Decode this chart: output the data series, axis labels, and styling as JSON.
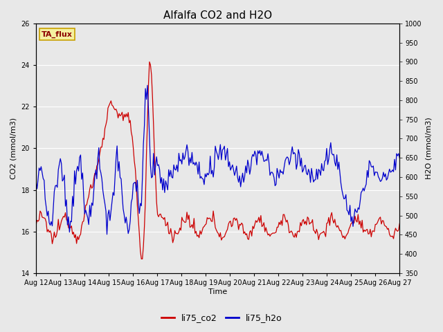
{
  "title": "Alfalfa CO2 and H2O",
  "xlabel": "Time",
  "ylabel_left": "CO2 (mmol/m3)",
  "ylabel_right": "H2O (mmol/m3)",
  "ylim_left": [
    14,
    26
  ],
  "ylim_right": [
    350,
    1000
  ],
  "yticks_left": [
    14,
    16,
    18,
    20,
    22,
    24,
    26
  ],
  "yticks_right": [
    350,
    400,
    450,
    500,
    550,
    600,
    650,
    700,
    750,
    800,
    850,
    900,
    950,
    1000
  ],
  "xtick_labels": [
    "Aug 12",
    "Aug 13",
    "Aug 14",
    "Aug 15",
    "Aug 16",
    "Aug 17",
    "Aug 18",
    "Aug 19",
    "Aug 20",
    "Aug 21",
    "Aug 22",
    "Aug 23",
    "Aug 24",
    "Aug 25",
    "Aug 26",
    "Aug 27"
  ],
  "legend_labels": [
    "li75_co2",
    "li75_h2o"
  ],
  "co2_color": "#cc0000",
  "h2o_color": "#0000cc",
  "bg_color": "#e8e8e8",
  "grid_color": "#ffffff",
  "annotation_text": "TA_flux",
  "annotation_fg": "#8b0000",
  "annotation_bg": "#f5f0a0",
  "annotation_border": "#c8a000",
  "title_fontsize": 11,
  "axis_label_fontsize": 8,
  "tick_fontsize": 7,
  "legend_fontsize": 9
}
